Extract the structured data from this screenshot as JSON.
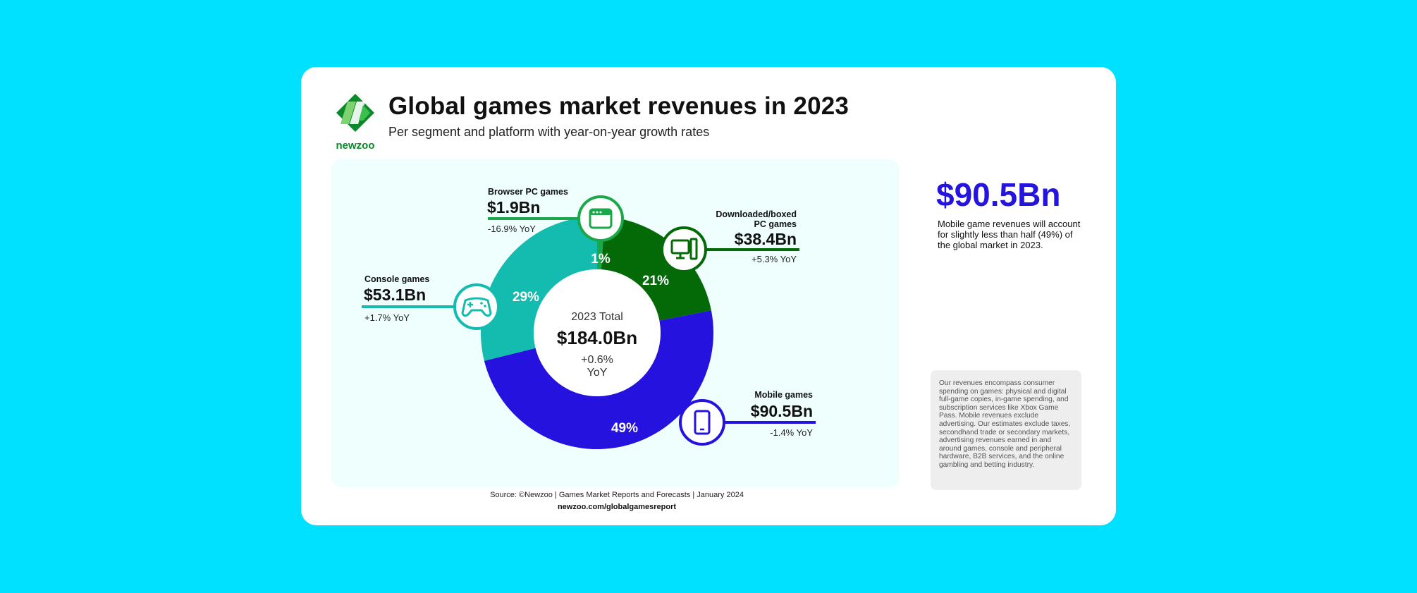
{
  "header": {
    "logo_text": "newzoo",
    "title": "Global games market revenues in 2023",
    "subtitle": "Per segment and platform with year-on-year growth rates"
  },
  "highlight": {
    "value": "$90.5Bn",
    "text": "Mobile game revenues will account for slightly less than half (49%) of the global market in 2023."
  },
  "notes": "Our revenues encompass consumer spending on games: physical and digital full-game copies, in-game spending, and subscription services like Xbox Game Pass. Mobile revenues exclude advertising. Our estimates exclude taxes, secondhand trade or secondary markets, advertising revenues earned in and around games, console and peripheral hardware, B2B services, and the online gambling and betting industry.",
  "footer": {
    "source": "Source: ©Newzoo | Games Market Reports and Forecasts | January 2024",
    "url": "newzoo.com/globalgamesreport"
  },
  "chart_data": {
    "type": "donut",
    "title": "Global games market revenues in 2023",
    "center": {
      "line1": "2023 Total",
      "value": "$184.0Bn",
      "growth": "+0.6%",
      "growth_unit": "YoY"
    },
    "segments": [
      {
        "name": "Browser PC games",
        "value": 1.9,
        "value_label": "$1.9Bn",
        "percent": 1,
        "percent_label": "1%",
        "yoy": "-16.9% YoY",
        "color": "#1BA84A",
        "icon": "browser-window-icon"
      },
      {
        "name": "Downloaded/boxed PC games",
        "value": 38.4,
        "value_label": "$38.4Bn",
        "percent": 21,
        "percent_label": "21%",
        "yoy": "+5.3% YoY",
        "color": "#046A08",
        "icon": "desktop-computer-icon"
      },
      {
        "name": "Mobile games",
        "value": 90.5,
        "value_label": "$90.5Bn",
        "percent": 49,
        "percent_label": "49%",
        "yoy": "-1.4% YoY",
        "color": "#2512DF",
        "icon": "smartphone-icon"
      },
      {
        "name": "Console games",
        "value": 53.1,
        "value_label": "$53.1Bn",
        "percent": 29,
        "percent_label": "29%",
        "yoy": "+1.7% YoY",
        "color": "#14BBAF",
        "icon": "gamepad-icon"
      }
    ]
  }
}
